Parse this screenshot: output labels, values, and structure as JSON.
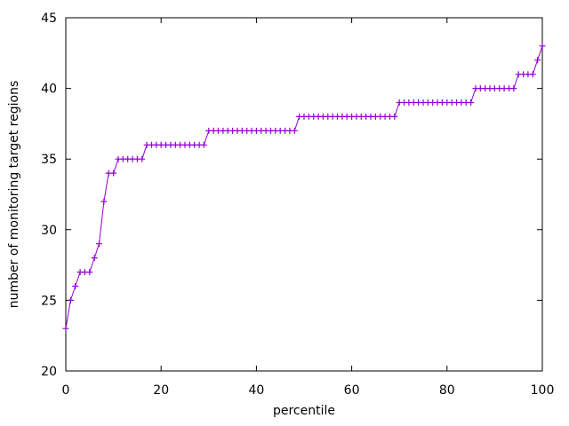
{
  "figure": {
    "background": "#ffffff",
    "axis_color": "#000000",
    "text_color": "#000000",
    "series_color": "#9400d3"
  },
  "chart_data": {
    "type": "line",
    "title": "",
    "xlabel": "percentile",
    "ylabel": "number of monitoring target regions",
    "xlim": [
      0,
      100
    ],
    "ylim": [
      20,
      45
    ],
    "xticks": [
      0,
      20,
      40,
      60,
      80,
      100
    ],
    "yticks": [
      20,
      25,
      30,
      35,
      40,
      45
    ],
    "grid": false,
    "legend_position": "none",
    "marker": "plus",
    "x": [
      0,
      1,
      2,
      3,
      4,
      5,
      6,
      7,
      8,
      9,
      10,
      11,
      12,
      13,
      14,
      15,
      16,
      17,
      18,
      19,
      20,
      21,
      22,
      23,
      24,
      25,
      26,
      27,
      28,
      29,
      30,
      31,
      32,
      33,
      34,
      35,
      36,
      37,
      38,
      39,
      40,
      41,
      42,
      43,
      44,
      45,
      46,
      47,
      48,
      49,
      50,
      51,
      52,
      53,
      54,
      55,
      56,
      57,
      58,
      59,
      60,
      61,
      62,
      63,
      64,
      65,
      66,
      67,
      68,
      69,
      70,
      71,
      72,
      73,
      74,
      75,
      76,
      77,
      78,
      79,
      80,
      81,
      82,
      83,
      84,
      85,
      86,
      87,
      88,
      89,
      90,
      91,
      92,
      93,
      94,
      95,
      96,
      97,
      98,
      99,
      100
    ],
    "values": [
      23,
      25,
      26,
      27,
      27,
      27,
      28,
      29,
      32,
      34,
      34,
      35,
      35,
      35,
      35,
      35,
      35,
      36,
      36,
      36,
      36,
      36,
      36,
      36,
      36,
      36,
      36,
      36,
      36,
      36,
      37,
      37,
      37,
      37,
      37,
      37,
      37,
      37,
      37,
      37,
      37,
      37,
      37,
      37,
      37,
      37,
      37,
      37,
      37,
      38,
      38,
      38,
      38,
      38,
      38,
      38,
      38,
      38,
      38,
      38,
      38,
      38,
      38,
      38,
      38,
      38,
      38,
      38,
      38,
      38,
      39,
      39,
      39,
      39,
      39,
      39,
      39,
      39,
      39,
      39,
      39,
      39,
      39,
      39,
      39,
      39,
      40,
      40,
      40,
      40,
      40,
      40,
      40,
      40,
      40,
      41,
      41,
      41,
      41,
      42,
      43
    ]
  }
}
